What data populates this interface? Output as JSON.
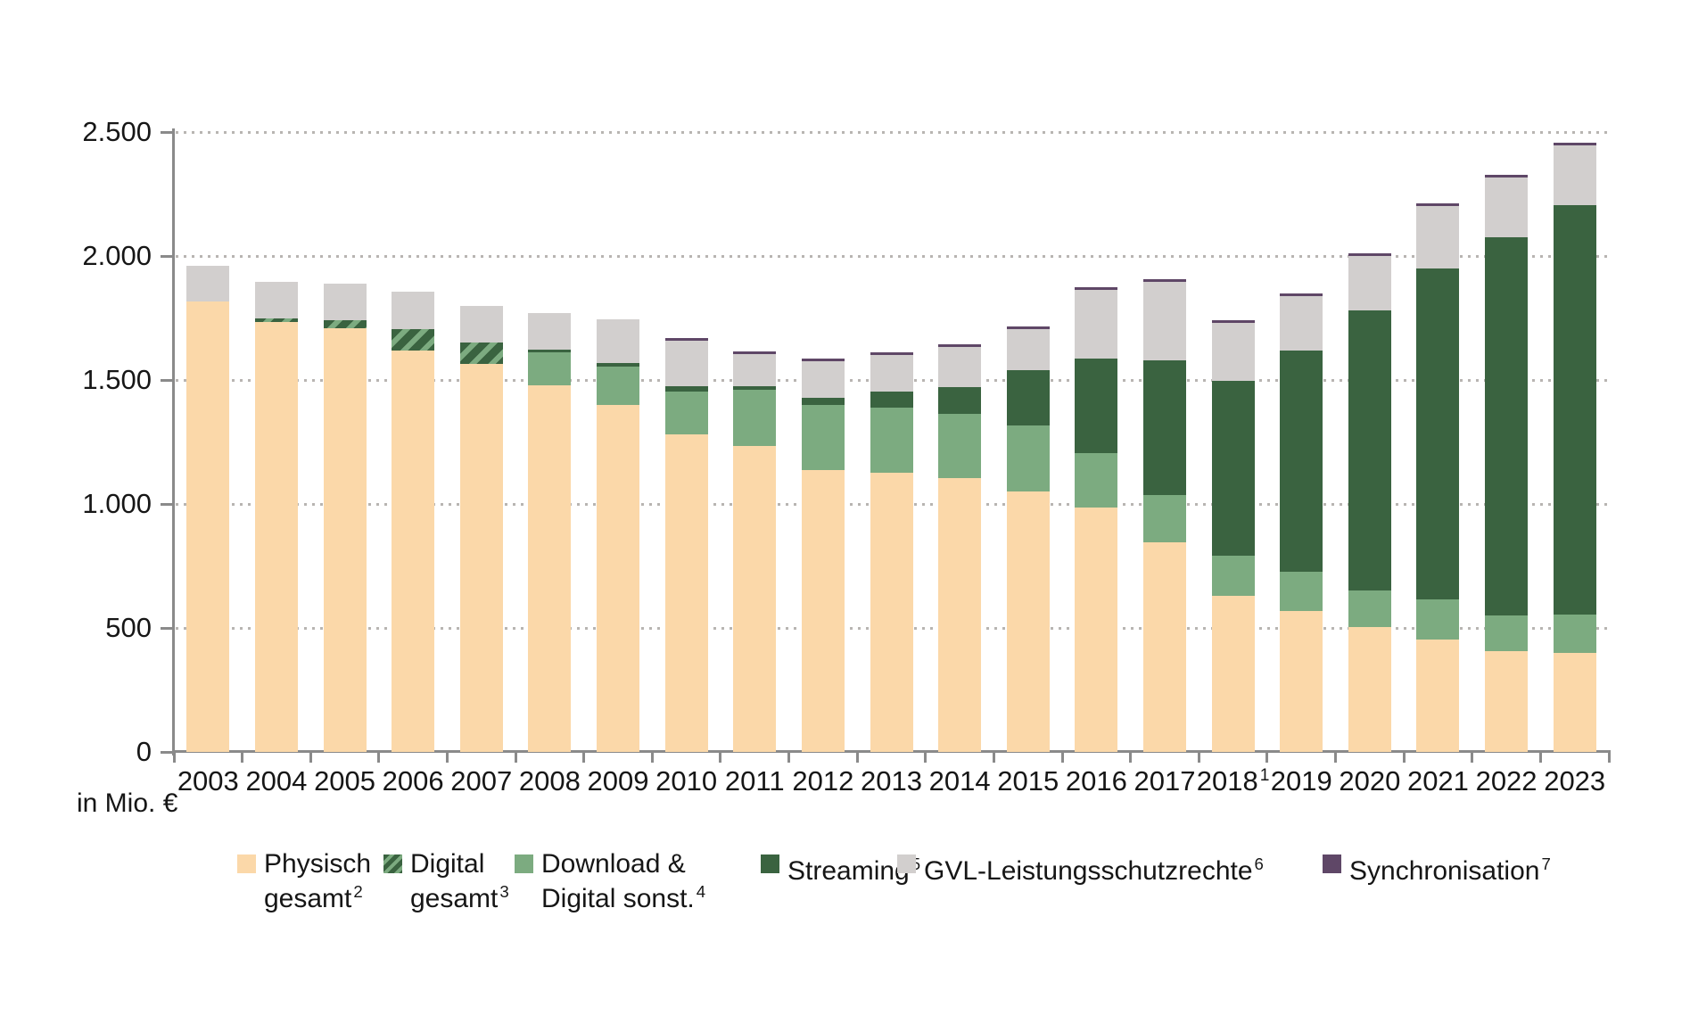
{
  "unit_label": "in Mio. €",
  "colors": {
    "physisch": "#fbd8a9",
    "digital_hatch_dark": "#3a6340",
    "digital_hatch_light": "#7cab80",
    "download_digital": "#7cab80",
    "streaming": "#3a6340",
    "gvl": "#d2cfce",
    "synchronisation": "#5f4767",
    "axis": "#8a8a8a",
    "grid_dot": "#b8b5b2",
    "text": "#161616"
  },
  "y_axis": {
    "max": 2500,
    "ticks": [
      {
        "value": 0,
        "label": "0"
      },
      {
        "value": 500,
        "label": "500"
      },
      {
        "value": 1000,
        "label": "1.000"
      },
      {
        "value": 1500,
        "label": "1.500"
      },
      {
        "value": 2000,
        "label": "2.000"
      },
      {
        "value": 2500,
        "label": "2.500"
      }
    ]
  },
  "chart_data": {
    "type": "bar",
    "stacked": true,
    "title": "",
    "xlabel": "",
    "ylabel": "in Mio. €",
    "ylim": [
      0,
      2500
    ],
    "grid": "dotted horizontal",
    "legend_position": "bottom",
    "categories": [
      "2003",
      "2004",
      "2005",
      "2006",
      "2007",
      "2008",
      "2009",
      "2010",
      "2011",
      "2012",
      "2013",
      "2014",
      "2015",
      "2016",
      "2017",
      "2018",
      "2019",
      "2020",
      "2021",
      "2022",
      "2023"
    ],
    "category_superscripts": {
      "2018": "1"
    },
    "series": [
      {
        "key": "physisch",
        "name": "Physisch gesamt",
        "sup": "2",
        "values": [
          1815,
          1735,
          1710,
          1620,
          1565,
          1480,
          1400,
          1280,
          1235,
          1135,
          1125,
          1105,
          1050,
          985,
          845,
          630,
          570,
          505,
          455,
          405,
          400
        ]
      },
      {
        "key": "digital",
        "name": "Digital gesamt",
        "sup": "3",
        "values": [
          0,
          15,
          30,
          85,
          85,
          0,
          0,
          0,
          0,
          0,
          0,
          0,
          0,
          0,
          0,
          0,
          0,
          0,
          0,
          0,
          0
        ]
      },
      {
        "key": "download",
        "name": "Download & Digital sonst.",
        "sup": "4",
        "values": [
          0,
          0,
          0,
          0,
          0,
          130,
          155,
          175,
          225,
          265,
          265,
          260,
          265,
          220,
          190,
          160,
          155,
          145,
          160,
          145,
          155
        ]
      },
      {
        "key": "streaming",
        "name": "Streaming",
        "sup": "5",
        "values": [
          0,
          0,
          0,
          0,
          0,
          10,
          15,
          20,
          15,
          30,
          65,
          105,
          225,
          380,
          545,
          705,
          895,
          1130,
          1335,
          1525,
          1650
        ]
      },
      {
        "key": "gvl",
        "name": "GVL-Leistungsschutzrechte",
        "sup": "6",
        "values": [
          145,
          145,
          150,
          150,
          150,
          150,
          175,
          185,
          130,
          145,
          145,
          165,
          165,
          280,
          315,
          235,
          220,
          220,
          250,
          240,
          240
        ]
      },
      {
        "key": "sync",
        "name": "Synchronisation",
        "sup": "7",
        "values": [
          0,
          0,
          0,
          0,
          0,
          0,
          0,
          5,
          5,
          5,
          5,
          5,
          5,
          5,
          5,
          5,
          5,
          5,
          5,
          5,
          5
        ]
      }
    ]
  },
  "legend": {
    "items": [
      {
        "key": "physisch",
        "lines": [
          "Physisch",
          "gesamt"
        ],
        "sup": "2"
      },
      {
        "key": "digital",
        "lines": [
          "Digital",
          "gesamt"
        ],
        "sup": "3"
      },
      {
        "key": "download",
        "lines": [
          "Download &",
          "Digital sonst."
        ],
        "sup": "4"
      },
      {
        "key": "streaming",
        "lines": [
          "Streaming"
        ],
        "sup": "5"
      },
      {
        "key": "gvl",
        "lines": [
          "GVL-Leistungsschutzrechte"
        ],
        "sup": "6"
      },
      {
        "key": "sync",
        "lines": [
          "Synchronisation"
        ],
        "sup": "7"
      }
    ]
  }
}
